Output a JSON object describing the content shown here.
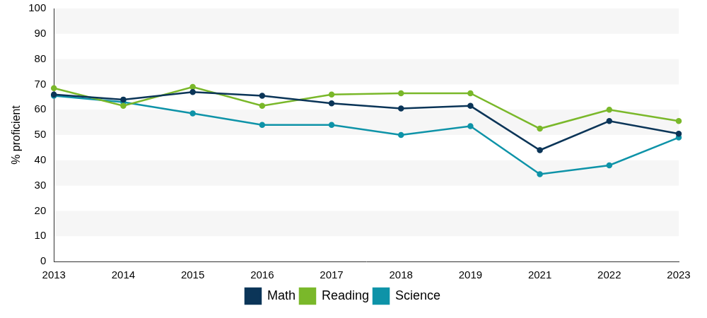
{
  "chart_data": {
    "type": "line",
    "y_label": "% proficient",
    "categories": [
      "2013",
      "2014",
      "2015",
      "2016",
      "2017",
      "2018",
      "2019",
      "2021",
      "2022",
      "2023"
    ],
    "series": [
      {
        "name": "Math",
        "color": "#0b3558",
        "values": [
          66,
          64,
          67,
          65.5,
          62.5,
          60.5,
          61.5,
          44,
          55.5,
          50.5
        ]
      },
      {
        "name": "Reading",
        "color": "#7ab82a",
        "values": [
          68.5,
          61.5,
          69,
          61.5,
          66,
          66.5,
          66.5,
          52.5,
          60,
          55.5
        ]
      },
      {
        "name": "Science",
        "color": "#0e93a8",
        "values": [
          65.5,
          63,
          58.5,
          54,
          54,
          50,
          53.5,
          34.5,
          38,
          49
        ]
      }
    ],
    "ylim": [
      0,
      100
    ],
    "yticks": [
      0,
      10,
      20,
      30,
      40,
      50,
      60,
      70,
      80,
      90,
      100
    ],
    "grid": true,
    "legend": "bottom",
    "marker": "circle"
  }
}
